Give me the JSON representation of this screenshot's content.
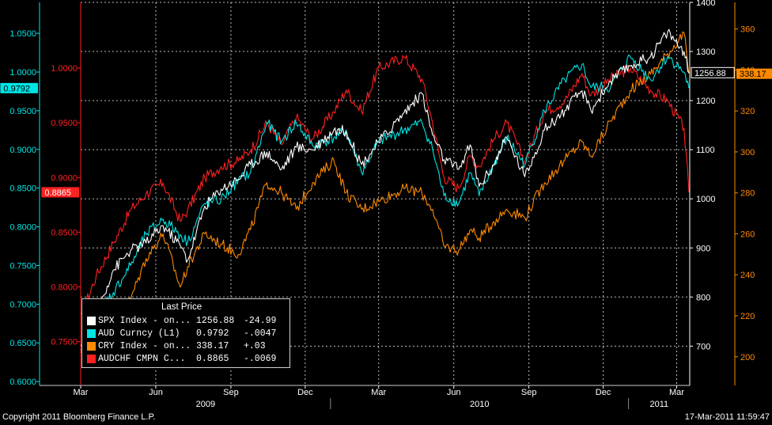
{
  "chart_data": {
    "type": "line",
    "x_range": [
      "2009-03",
      "2011-03-17"
    ],
    "x_ticks": [
      {
        "label": "Mar",
        "date": "2009-03-01"
      },
      {
        "label": "Jun",
        "date": "2009-06-01"
      },
      {
        "label": "Sep",
        "date": "2009-09-01"
      },
      {
        "label": "Dec",
        "date": "2009-12-01"
      },
      {
        "label": "Mar",
        "date": "2010-03-01"
      },
      {
        "label": "Jun",
        "date": "2010-06-01"
      },
      {
        "label": "Sep",
        "date": "2010-09-01"
      },
      {
        "label": "Dec",
        "date": "2010-12-01"
      },
      {
        "label": "Mar",
        "date": "2011-03-01"
      }
    ],
    "years": [
      "2009",
      "2010",
      "2011"
    ],
    "axes": {
      "aud": {
        "color": "#00e5e5",
        "ticks": [
          "0.6000",
          "0.6500",
          "0.7000",
          "0.7500",
          "0.8000",
          "0.8500",
          "0.9000",
          "0.9500",
          "1.0000",
          "1.0500"
        ],
        "range": [
          0.595,
          1.09
        ]
      },
      "audchf": {
        "color": "#ff2020",
        "ticks": [
          "0.7500",
          "0.8000",
          "0.8500",
          "0.9000",
          "0.9500",
          "1.0000"
        ],
        "range": [
          0.71,
          1.06
        ]
      },
      "spx": {
        "color": "#ffffff",
        "ticks": [
          "700",
          "800",
          "900",
          "1000",
          "1100",
          "1200",
          "1300",
          "1400"
        ],
        "range": [
          620,
          1400
        ]
      },
      "cry": {
        "color": "#ff8a00",
        "ticks": [
          "200",
          "220",
          "240",
          "260",
          "280",
          "300",
          "320",
          "340",
          "360"
        ],
        "range": [
          186,
          373
        ]
      }
    },
    "last_value_tags": [
      {
        "axis": "aud",
        "text": "0.9792",
        "value": 0.9792
      },
      {
        "axis": "audchf",
        "text": "0.8865",
        "value": 0.8865
      },
      {
        "axis": "spx",
        "text": "1256.88",
        "value": 1256.88
      },
      {
        "axis": "cry",
        "text": "338.17",
        "value": 338.17
      }
    ],
    "series": [
      {
        "name": "SPX Index - on...",
        "axis": "spx",
        "color": "#ffffff",
        "x": [
          "2009-03-02",
          "2009-03-20",
          "2009-04-10",
          "2009-05-01",
          "2009-05-20",
          "2009-06-10",
          "2009-07-01",
          "2009-07-10",
          "2009-07-31",
          "2009-08-20",
          "2009-09-10",
          "2009-09-25",
          "2009-10-15",
          "2009-11-02",
          "2009-11-20",
          "2009-12-10",
          "2010-01-05",
          "2010-01-20",
          "2010-02-08",
          "2010-03-01",
          "2010-04-01",
          "2010-04-23",
          "2010-05-06",
          "2010-05-20",
          "2010-06-07",
          "2010-06-21",
          "2010-07-02",
          "2010-07-20",
          "2010-08-05",
          "2010-08-27",
          "2010-09-20",
          "2010-10-15",
          "2010-11-05",
          "2010-11-16",
          "2010-12-10",
          "2011-01-03",
          "2011-01-28",
          "2011-02-18",
          "2011-03-10",
          "2011-03-16"
        ],
        "y": [
          700,
          768,
          855,
          895,
          910,
          945,
          905,
          875,
          985,
          1020,
          1040,
          1070,
          1095,
          1060,
          1105,
          1100,
          1140,
          1138,
          1070,
          1115,
          1175,
          1215,
          1130,
          1080,
          1060,
          1110,
          1025,
          1070,
          1125,
          1045,
          1140,
          1180,
          1220,
          1180,
          1240,
          1270,
          1290,
          1340,
          1300,
          1256.88
        ]
      },
      {
        "name": "AUD Curncy (L1)",
        "axis": "aud",
        "color": "#00e5e5",
        "x": [
          "2009-03-02",
          "2009-03-20",
          "2009-04-10",
          "2009-05-01",
          "2009-05-20",
          "2009-06-10",
          "2009-07-01",
          "2009-07-10",
          "2009-07-31",
          "2009-08-20",
          "2009-09-10",
          "2009-09-25",
          "2009-10-15",
          "2009-11-02",
          "2009-11-20",
          "2009-12-10",
          "2010-01-05",
          "2010-01-20",
          "2010-02-08",
          "2010-03-01",
          "2010-04-01",
          "2010-04-23",
          "2010-05-06",
          "2010-05-20",
          "2010-06-07",
          "2010-06-21",
          "2010-07-02",
          "2010-07-20",
          "2010-08-05",
          "2010-08-27",
          "2010-09-20",
          "2010-10-15",
          "2010-11-05",
          "2010-11-16",
          "2010-12-10",
          "2011-01-03",
          "2011-01-28",
          "2011-02-18",
          "2011-03-10",
          "2011-03-16"
        ],
        "y": [
          0.64,
          0.69,
          0.715,
          0.75,
          0.79,
          0.81,
          0.79,
          0.78,
          0.83,
          0.835,
          0.86,
          0.87,
          0.935,
          0.91,
          0.935,
          0.905,
          0.915,
          0.925,
          0.87,
          0.91,
          0.925,
          0.935,
          0.9,
          0.84,
          0.83,
          0.87,
          0.84,
          0.88,
          0.915,
          0.88,
          0.95,
          0.99,
          1.01,
          0.98,
          0.98,
          1.02,
          0.99,
          1.02,
          1.0,
          0.9792
        ]
      },
      {
        "name": "CRY Index - on...",
        "axis": "cry",
        "color": "#ff8a00",
        "x": [
          "2009-03-02",
          "2009-03-20",
          "2009-04-10",
          "2009-05-01",
          "2009-05-20",
          "2009-06-10",
          "2009-07-01",
          "2009-07-10",
          "2009-07-31",
          "2009-08-20",
          "2009-09-10",
          "2009-09-25",
          "2009-10-15",
          "2009-11-02",
          "2009-11-20",
          "2009-12-10",
          "2010-01-05",
          "2010-01-20",
          "2010-02-08",
          "2010-03-01",
          "2010-04-01",
          "2010-04-23",
          "2010-05-06",
          "2010-05-20",
          "2010-06-07",
          "2010-06-21",
          "2010-07-02",
          "2010-07-20",
          "2010-08-05",
          "2010-08-27",
          "2010-09-20",
          "2010-10-15",
          "2010-11-05",
          "2010-11-16",
          "2010-12-10",
          "2011-01-03",
          "2011-01-28",
          "2011-02-18",
          "2011-03-10",
          "2011-03-16"
        ],
        "y": [
          202,
          210,
          218,
          228,
          248,
          260,
          234,
          244,
          260,
          255,
          250,
          262,
          285,
          280,
          272,
          285,
          296,
          280,
          272,
          276,
          282,
          280,
          272,
          254,
          252,
          262,
          258,
          266,
          272,
          268,
          285,
          296,
          305,
          298,
          315,
          330,
          338,
          348,
          358,
          338.17
        ]
      },
      {
        "name": "AUDCHF CMPN C...",
        "axis": "audchf",
        "color": "#ff2020",
        "x": [
          "2009-03-02",
          "2009-03-20",
          "2009-04-10",
          "2009-05-01",
          "2009-05-20",
          "2009-06-10",
          "2009-07-01",
          "2009-07-10",
          "2009-07-31",
          "2009-08-20",
          "2009-09-10",
          "2009-09-25",
          "2009-10-15",
          "2009-11-02",
          "2009-11-20",
          "2009-12-10",
          "2010-01-05",
          "2010-01-20",
          "2010-02-08",
          "2010-03-01",
          "2010-04-01",
          "2010-04-23",
          "2010-05-06",
          "2010-05-20",
          "2010-06-07",
          "2010-06-21",
          "2010-07-02",
          "2010-07-20",
          "2010-08-05",
          "2010-08-27",
          "2010-09-20",
          "2010-10-15",
          "2010-11-05",
          "2010-11-16",
          "2010-12-10",
          "2011-01-03",
          "2011-01-28",
          "2011-02-18",
          "2011-03-10",
          "2011-03-16"
        ],
        "y": [
          0.775,
          0.81,
          0.84,
          0.87,
          0.885,
          0.895,
          0.86,
          0.87,
          0.9,
          0.91,
          0.915,
          0.925,
          0.95,
          0.93,
          0.955,
          0.935,
          0.96,
          0.98,
          0.96,
          1.0,
          1.01,
          0.99,
          0.95,
          0.9,
          0.89,
          0.92,
          0.91,
          0.935,
          0.95,
          0.915,
          0.96,
          0.97,
          0.995,
          0.975,
          0.99,
          1.0,
          0.98,
          0.97,
          0.945,
          0.8865
        ]
      }
    ],
    "legend": {
      "header": "Last Price",
      "rows": [
        {
          "name": "SPX Index - on...",
          "last": "1256.88",
          "change": "-24.99",
          "color": "#ffffff"
        },
        {
          "name": "AUD Curncy (L1)",
          "last": "0.9792",
          "change": "-.0047",
          "color": "#00e5e5"
        },
        {
          "name": "CRY Index - on...",
          "last": "338.17",
          "change": "+.03",
          "color": "#ff8a00"
        },
        {
          "name": "AUDCHF CMPN C...",
          "last": "0.8865",
          "change": "-.0069",
          "color": "#ff2020"
        }
      ]
    }
  },
  "footer": {
    "copyright": "Copyright 2011 Bloomberg Finance L.P.",
    "timestamp": "17-Mar-2011 11:59:47"
  }
}
